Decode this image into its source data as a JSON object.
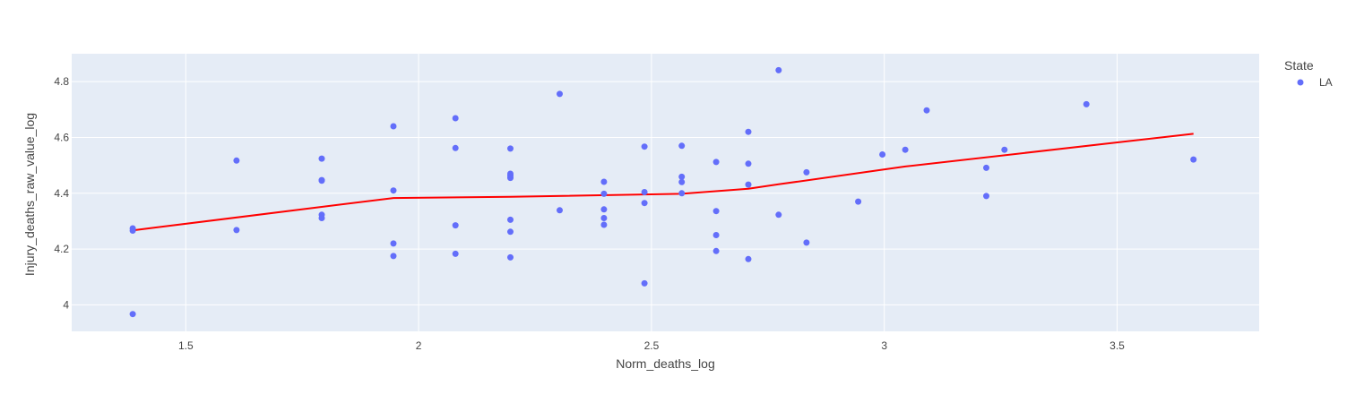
{
  "chart_data": {
    "type": "scatter",
    "xlabel": "Norm_deaths_log",
    "ylabel": "Injury_deaths_raw_value_log",
    "xlim": [
      1.255,
      3.805
    ],
    "ylim": [
      3.905,
      4.9
    ],
    "x_ticks": [
      1.5,
      2,
      2.5,
      3,
      3.5
    ],
    "x_tick_labels": [
      "1.5",
      "2",
      "2.5",
      "3",
      "3.5"
    ],
    "y_ticks": [
      4,
      4.2,
      4.4,
      4.6,
      4.8
    ],
    "y_tick_labels": [
      "4",
      "4.2",
      "4.4",
      "4.6",
      "4.8"
    ],
    "grid": true,
    "legend": {
      "title": "State",
      "placement": "top-right"
    },
    "colors": {
      "plot_bg": "#E5ECF6",
      "grid": "#FFFFFF",
      "points": "#636EFA",
      "trend": "#FF0000"
    },
    "series": [
      {
        "name": "LA",
        "color": "#636EFA",
        "points": [
          [
            1.386,
            4.274
          ],
          [
            1.386,
            4.266
          ],
          [
            1.386,
            3.967
          ],
          [
            1.609,
            4.517
          ],
          [
            1.609,
            4.268
          ],
          [
            1.792,
            4.524
          ],
          [
            1.792,
            4.447
          ],
          [
            1.792,
            4.445
          ],
          [
            1.792,
            4.323
          ],
          [
            1.792,
            4.311
          ],
          [
            1.946,
            4.64
          ],
          [
            1.946,
            4.41
          ],
          [
            1.946,
            4.22
          ],
          [
            1.946,
            4.175
          ],
          [
            2.079,
            4.669
          ],
          [
            2.079,
            4.562
          ],
          [
            2.079,
            4.285
          ],
          [
            2.079,
            4.183
          ],
          [
            2.197,
            4.56
          ],
          [
            2.197,
            4.47
          ],
          [
            2.197,
            4.463
          ],
          [
            2.197,
            4.455
          ],
          [
            2.197,
            4.305
          ],
          [
            2.197,
            4.262
          ],
          [
            2.197,
            4.17
          ],
          [
            2.303,
            4.756
          ],
          [
            2.303,
            4.339
          ],
          [
            2.398,
            4.441
          ],
          [
            2.398,
            4.398
          ],
          [
            2.398,
            4.342
          ],
          [
            2.398,
            4.311
          ],
          [
            2.398,
            4.287
          ],
          [
            2.485,
            4.567
          ],
          [
            2.485,
            4.404
          ],
          [
            2.485,
            4.365
          ],
          [
            2.485,
            4.077
          ],
          [
            2.565,
            4.57
          ],
          [
            2.565,
            4.459
          ],
          [
            2.565,
            4.44
          ],
          [
            2.565,
            4.4
          ],
          [
            2.639,
            4.512
          ],
          [
            2.639,
            4.336
          ],
          [
            2.639,
            4.25
          ],
          [
            2.639,
            4.193
          ],
          [
            2.708,
            4.62
          ],
          [
            2.708,
            4.506
          ],
          [
            2.708,
            4.431
          ],
          [
            2.708,
            4.164
          ],
          [
            2.773,
            4.841
          ],
          [
            2.773,
            4.323
          ],
          [
            2.833,
            4.475
          ],
          [
            2.833,
            4.223
          ],
          [
            2.944,
            4.37
          ],
          [
            2.996,
            4.539
          ],
          [
            3.045,
            4.556
          ],
          [
            3.091,
            4.697
          ],
          [
            3.219,
            4.491
          ],
          [
            3.219,
            4.39
          ],
          [
            3.258,
            4.556
          ],
          [
            3.434,
            4.719
          ],
          [
            3.664,
            4.521
          ]
        ]
      }
    ],
    "trendline": [
      [
        1.386,
        4.267
      ],
      [
        1.946,
        4.383
      ],
      [
        2.197,
        4.387
      ],
      [
        2.565,
        4.398
      ],
      [
        2.708,
        4.416
      ],
      [
        2.773,
        4.432
      ],
      [
        3.045,
        4.496
      ],
      [
        3.664,
        4.613
      ]
    ]
  }
}
